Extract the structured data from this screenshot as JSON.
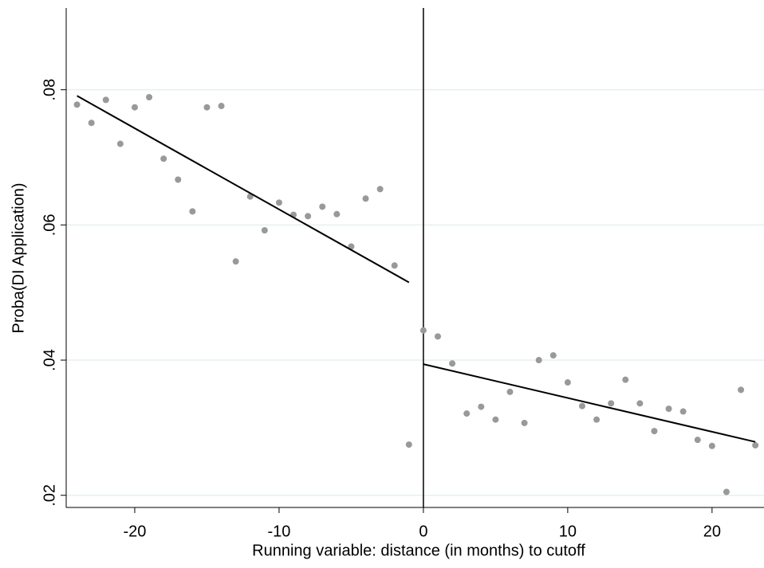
{
  "chart_data": {
    "type": "scatter",
    "x_label": "Running variable: distance (in months) to cutoff",
    "y_label": "Proba(DI Application)",
    "xlim": [
      -24.75,
      23.6
    ],
    "ylim": [
      0.0182,
      0.0921
    ],
    "xticks": [
      -20,
      -10,
      0,
      10,
      20
    ],
    "yticks": [
      {
        "value": 0.02,
        "label": ".02"
      },
      {
        "value": 0.04,
        "label": ".04"
      },
      {
        "value": 0.06,
        "label": ".06"
      },
      {
        "value": 0.08,
        "label": ".08"
      }
    ],
    "grid": true,
    "grid_color": "#e6eff1",
    "vline": 0,
    "series": [
      {
        "type": "scatter",
        "color": "#999999",
        "x": [
          -24,
          -23,
          -22,
          -21,
          -20,
          -19,
          -18,
          -17,
          -16,
          -15,
          -14,
          -13,
          -12,
          -11,
          -10,
          -9,
          -8,
          -7,
          -6,
          -5,
          -4,
          -3,
          -2,
          -1,
          0,
          1,
          2,
          3,
          4,
          5,
          6,
          7,
          8,
          9,
          10,
          11,
          12,
          13,
          14,
          15,
          16,
          17,
          18,
          19,
          20,
          21,
          22,
          23
        ],
        "values": [
          0.0778,
          0.0751,
          0.0785,
          0.072,
          0.0774,
          0.0789,
          0.0698,
          0.0667,
          0.062,
          0.0774,
          0.0776,
          0.0546,
          0.0642,
          0.0592,
          0.0633,
          0.0615,
          0.0613,
          0.0627,
          0.0616,
          0.0568,
          0.0639,
          0.0653,
          0.054,
          0.0275,
          0.0444,
          0.0435,
          0.0395,
          0.0321,
          0.0331,
          0.0312,
          0.0353,
          0.0307,
          0.04,
          0.0407,
          0.0367,
          0.0332,
          0.0312,
          0.0336,
          0.0371,
          0.0336,
          0.0295,
          0.0328,
          0.0324,
          0.0282,
          0.0273,
          0.0205,
          0.0356,
          0.0274
        ]
      },
      {
        "type": "line",
        "color": "#000000",
        "x": [
          -24,
          -1
        ],
        "values": [
          0.0791,
          0.0515
        ]
      },
      {
        "type": "line",
        "color": "#000000",
        "x": [
          0,
          23
        ],
        "values": [
          0.0394,
          0.0279
        ]
      }
    ]
  }
}
